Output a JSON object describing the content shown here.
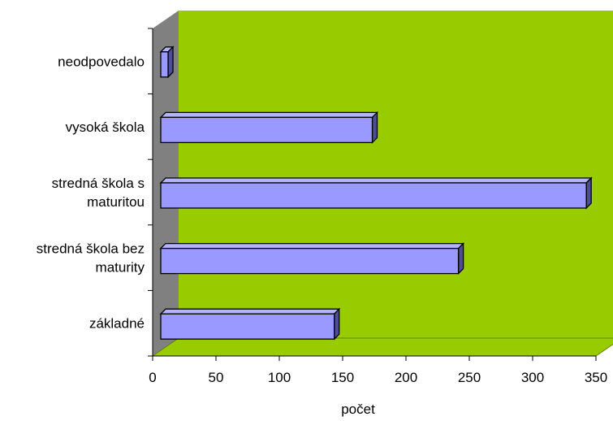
{
  "chart_data": {
    "type": "bar",
    "orientation": "horizontal",
    "style": "3d",
    "title": "",
    "xlabel": "počet",
    "ylabel": "",
    "xlim": [
      0,
      350
    ],
    "x_ticks": [
      0,
      50,
      100,
      150,
      200,
      250,
      300,
      350
    ],
    "categories": [
      "neodpovedalo",
      "vysoká škola",
      "stredná škola s maturitou",
      "stredná škola bez maturity",
      "základné"
    ],
    "category_label_lines": [
      [
        "neodpovedalo"
      ],
      [
        "vysoká škola"
      ],
      [
        "stredná škola s",
        "maturitou"
      ],
      [
        "stredná škola bez",
        "maturity"
      ],
      [
        "základné"
      ]
    ],
    "values": [
      3,
      167,
      336,
      235,
      137
    ],
    "colors": {
      "plot_back_wall": "#99cc00",
      "side_wall": "#808080",
      "floor": "#99cc00",
      "bar_front": "#9999ff",
      "bar_top": "#b3b3ff",
      "bar_side": "#4d4d99",
      "outline": "#000000"
    }
  }
}
